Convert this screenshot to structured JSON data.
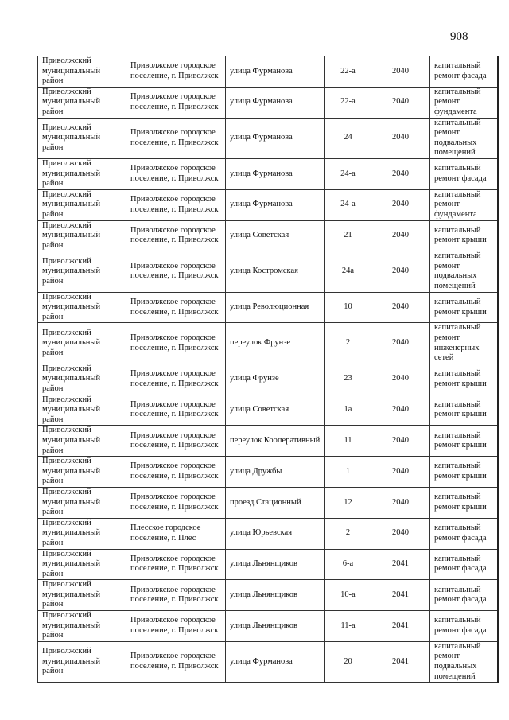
{
  "page_number": "908",
  "rows": [
    {
      "district": "Приволжский муниципальный район",
      "settlement": "Приволжское городское поселение, г. Приволжск",
      "street": "улица Фурманова",
      "house": "22-а",
      "year": "2040",
      "work": "капитальный ремонт фасада"
    },
    {
      "district": "Приволжский муниципальный район",
      "settlement": "Приволжское городское поселение, г. Приволжск",
      "street": "улица Фурманова",
      "house": "22-а",
      "year": "2040",
      "work": "капитальный ремонт фундамента"
    },
    {
      "district": "Приволжский муниципальный район",
      "settlement": "Приволжское городское поселение, г. Приволжск",
      "street": "улица Фурманова",
      "house": "24",
      "year": "2040",
      "work": "капитальный ремонт подвальных помещений"
    },
    {
      "district": "Приволжский муниципальный район",
      "settlement": "Приволжское городское поселение, г. Приволжск",
      "street": "улица Фурманова",
      "house": "24-а",
      "year": "2040",
      "work": "капитальный ремонт фасада"
    },
    {
      "district": "Приволжский муниципальный район",
      "settlement": "Приволжское городское поселение, г. Приволжск",
      "street": "улица Фурманова",
      "house": "24-а",
      "year": "2040",
      "work": "капитальный ремонт фундамента"
    },
    {
      "district": "Приволжский муниципальный район",
      "settlement": "Приволжское городское поселение, г. Приволжск",
      "street": "улица Советская",
      "house": "21",
      "year": "2040",
      "work": "капитальный ремонт крыши"
    },
    {
      "district": "Приволжский муниципальный район",
      "settlement": "Приволжское городское поселение, г. Приволжск",
      "street": "улица Костромская",
      "house": "24а",
      "year": "2040",
      "work": "капитальный ремонт подвальных помещений"
    },
    {
      "district": "Приволжский муниципальный район",
      "settlement": "Приволжское городское поселение, г. Приволжск",
      "street": "улица Революционная",
      "house": "10",
      "year": "2040",
      "work": "капитальный ремонт крыши"
    },
    {
      "district": "Приволжский муниципальный район",
      "settlement": "Приволжское городское поселение, г. Приволжск",
      "street": "переулок Фрунзе",
      "house": "2",
      "year": "2040",
      "work": "капитальный ремонт инженерных сетей"
    },
    {
      "district": "Приволжский муниципальный район",
      "settlement": "Приволжское городское поселение, г. Приволжск",
      "street": "улица Фрунзе",
      "house": "23",
      "year": "2040",
      "work": "капитальный ремонт крыши"
    },
    {
      "district": "Приволжский муниципальный район",
      "settlement": "Приволжское городское поселение, г. Приволжск",
      "street": "улица Советская",
      "house": "1а",
      "year": "2040",
      "work": "капитальный ремонт крыши"
    },
    {
      "district": "Приволжский муниципальный район",
      "settlement": "Приволжское городское поселение, г. Приволжск",
      "street": "переулок Кооперативный",
      "house": "11",
      "year": "2040",
      "work": "капитальный ремонт крыши"
    },
    {
      "district": "Приволжский муниципальный район",
      "settlement": "Приволжское городское поселение, г. Приволжск",
      "street": "улица Дружбы",
      "house": "1",
      "year": "2040",
      "work": "капитальный ремонт крыши"
    },
    {
      "district": "Приволжский муниципальный район",
      "settlement": "Приволжское городское поселение, г. Приволжск",
      "street": "проезд Стационный",
      "house": "12",
      "year": "2040",
      "work": "капитальный ремонт крыши"
    },
    {
      "district": "Приволжский муниципальный район",
      "settlement": "Плесское городское поселение, г. Плес",
      "street": "улица Юрьевская",
      "house": "2",
      "year": "2040",
      "work": "капитальный ремонт фасада"
    },
    {
      "district": "Приволжский муниципальный район",
      "settlement": "Приволжское городское поселение, г. Приволжск",
      "street": "улица Льнянщиков",
      "house": "6-а",
      "year": "2041",
      "work": "капитальный ремонт фасада"
    },
    {
      "district": "Приволжский муниципальный район",
      "settlement": "Приволжское городское поселение, г. Приволжск",
      "street": "улица Льнянщиков",
      "house": "10-а",
      "year": "2041",
      "work": "капитальный ремонт фасада"
    },
    {
      "district": "Приволжский муниципальный район",
      "settlement": "Приволжское городское поселение, г. Приволжск",
      "street": "улица Льнянщиков",
      "house": "11-а",
      "year": "2041",
      "work": "капитальный ремонт фасада"
    },
    {
      "district": "Приволжский муниципальный район",
      "settlement": "Приволжское городское поселение, г. Приволжск",
      "street": "улица Фурманова",
      "house": "20",
      "year": "2041",
      "work": "капитальный ремонт подвальных помещений"
    }
  ]
}
